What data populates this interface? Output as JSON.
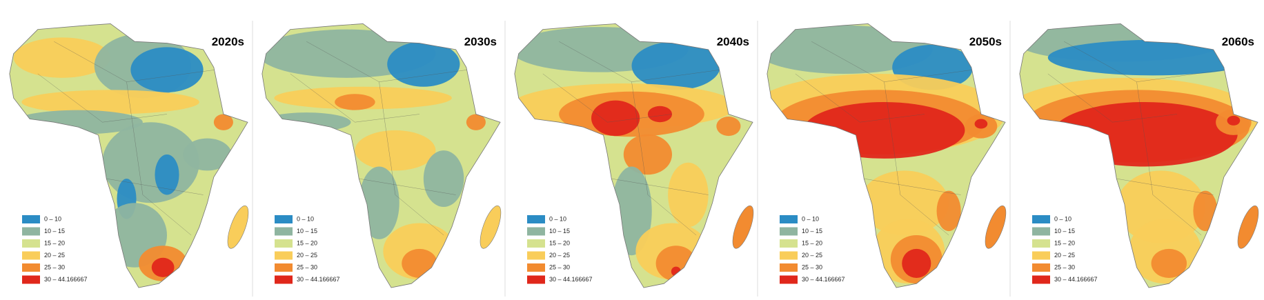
{
  "panels": [
    {
      "title": "2020s"
    },
    {
      "title": "2030s"
    },
    {
      "title": "2040s"
    },
    {
      "title": "2050s"
    },
    {
      "title": "2060s"
    }
  ],
  "legend": {
    "items": [
      {
        "label": "0 – 10",
        "color": "#2b8cc4"
      },
      {
        "label": "10 – 15",
        "color": "#8fb5a0"
      },
      {
        "label": "15 – 20",
        "color": "#d5e28f"
      },
      {
        "label": "20 – 25",
        "color": "#f9cd5a"
      },
      {
        "label": "25 – 30",
        "color": "#f28b30"
      },
      {
        "label": "30 – 44.166667",
        "color": "#e0271b"
      }
    ]
  }
}
